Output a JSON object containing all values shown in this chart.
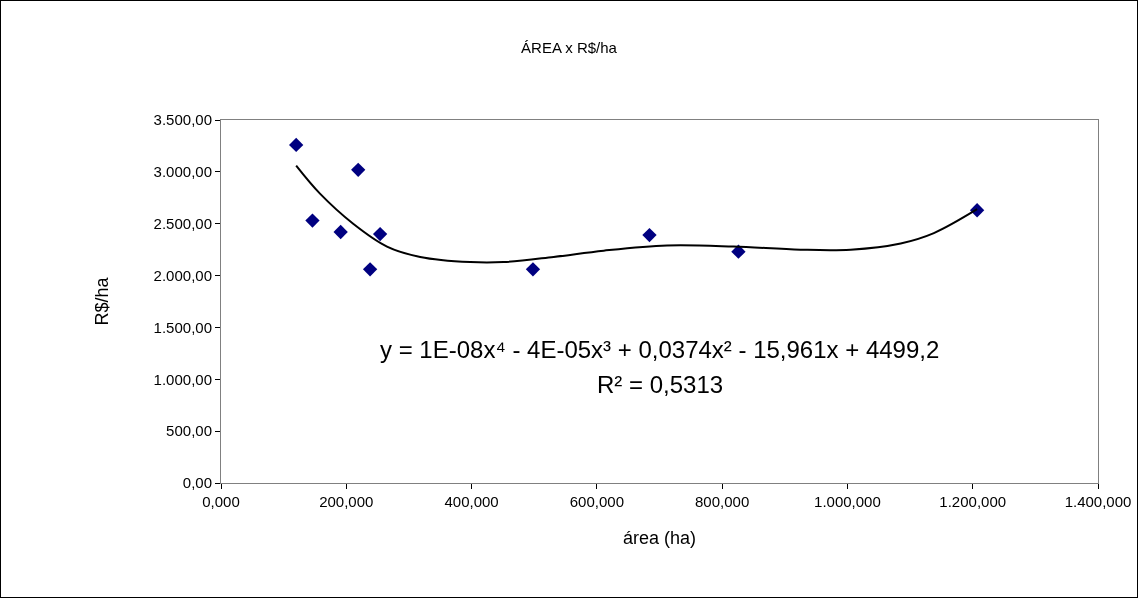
{
  "chart_data": {
    "type": "scatter",
    "title": "ÁREA x R$/ha",
    "xlabel": "área (ha)",
    "ylabel": "R$/ha",
    "x": [
      120,
      146,
      191,
      219,
      238,
      254,
      498,
      684,
      826,
      1207
    ],
    "series": [
      {
        "color": "#000080",
        "marker": "diamond",
        "values": [
          3260,
          2530,
          2420,
          3020,
          2060,
          2400,
          2060,
          2390,
          2230,
          2630
        ]
      },
      {
        "type": "line",
        "color": "#000000",
        "marker": "none",
        "line_style": "solid",
        "x": [
          120,
          158,
          211,
          265,
          318,
          398,
          451,
          531,
          611,
          712,
          818,
          925,
          1005,
          1085,
          1138,
          1207
        ],
        "values": [
          3060,
          2790,
          2500,
          2280,
          2180,
          2130,
          2130,
          2180,
          2240,
          2290,
          2280,
          2250,
          2250,
          2310,
          2410,
          2640
        ]
      }
    ],
    "xlim": [
      0,
      1400
    ],
    "xticks": [
      {
        "value": 0,
        "label": "0,000"
      },
      {
        "value": 200,
        "label": "200,000"
      },
      {
        "value": 400,
        "label": "400,000"
      },
      {
        "value": 600,
        "label": "600,000"
      },
      {
        "value": 800,
        "label": "800,000"
      },
      {
        "value": 1000,
        "label": "1.000,000"
      },
      {
        "value": 1200,
        "label": "1.200,000"
      },
      {
        "value": 1400,
        "label": "1.400,000"
      }
    ],
    "ylim": [
      0,
      3500
    ],
    "yticks": [
      {
        "value": 0,
        "label": "0,00"
      },
      {
        "value": 500,
        "label": "500,00"
      },
      {
        "value": 1000,
        "label": "1.000,00"
      },
      {
        "value": 1500,
        "label": "1.500,00"
      },
      {
        "value": 2000,
        "label": "2.000,00"
      },
      {
        "value": 2500,
        "label": "2.500,00"
      },
      {
        "value": 3000,
        "label": "3.000,00"
      },
      {
        "value": 3500,
        "label": "3.500,00"
      }
    ],
    "annotations": [
      "y = 1E-08x⁴ - 4E-05x³ + 0,0374x² - 15,961x + 4499,2",
      "R² = 0,5313"
    ],
    "grid": false
  }
}
